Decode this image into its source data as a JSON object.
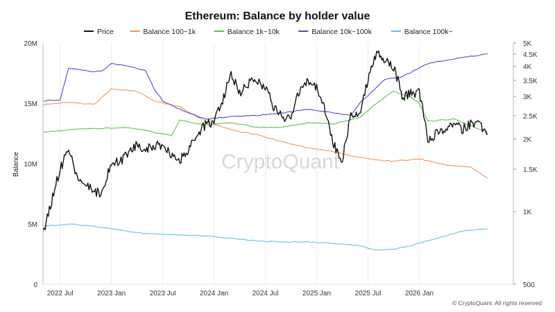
{
  "chart_data": {
    "type": "line",
    "title": "Ethereum: Balance by holder value",
    "ylabel": "Balance",
    "y_left": {
      "range": [
        0,
        20000000
      ],
      "ticks": [
        0,
        5000000,
        10000000,
        15000000,
        20000000
      ],
      "tick_labels": [
        "0",
        "5M",
        "10M",
        "15M",
        "20M"
      ]
    },
    "y_right": {
      "scale": "log",
      "range": [
        500,
        5000
      ],
      "ticks": [
        500,
        1000,
        1500,
        2000,
        2500,
        3000,
        3500,
        4000,
        4500,
        5000
      ],
      "tick_labels": [
        "500",
        "1K",
        "1.5K",
        "2K",
        "2.5K",
        "3K",
        "3.5K",
        "4K",
        "4.5K",
        "5K"
      ]
    },
    "x_axis": {
      "range": [
        "2022-05",
        "2026-12"
      ],
      "tick_labels": [
        "2022 Jul",
        "2023 Jan",
        "2023 Jul",
        "2024 Jan",
        "2024 Jul",
        "2025 Jan",
        "2025 Jul",
        "2026 Jan"
      ],
      "tick_dates": [
        "2022-07",
        "2023-01",
        "2023-07",
        "2024-01",
        "2024-07",
        "2025-01",
        "2025-07",
        "2026-01"
      ]
    },
    "legend_position": "top",
    "grid": "vertical",
    "watermark": "CryptoQuant",
    "copyright": "© CryptoQuant. All rights reserved",
    "series": [
      {
        "name": "Price",
        "color": "#111111",
        "axis": "right",
        "points": [
          [
            "2022-05",
            800
          ],
          [
            "2022-06",
            1100
          ],
          [
            "2022-07",
            1500
          ],
          [
            "2022-08",
            1800
          ],
          [
            "2022-09",
            1350
          ],
          [
            "2022-10",
            1300
          ],
          [
            "2022-11",
            1200
          ],
          [
            "2022-12",
            1200
          ],
          [
            "2023-01",
            1600
          ],
          [
            "2023-02",
            1600
          ],
          [
            "2023-03",
            1750
          ],
          [
            "2023-04",
            1900
          ],
          [
            "2023-05",
            1820
          ],
          [
            "2023-06",
            1870
          ],
          [
            "2023-07",
            1900
          ],
          [
            "2023-08",
            1700
          ],
          [
            "2023-09",
            1630
          ],
          [
            "2023-10",
            1800
          ],
          [
            "2023-11",
            2050
          ],
          [
            "2023-12",
            2300
          ],
          [
            "2024-01",
            2350
          ],
          [
            "2024-02",
            2900
          ],
          [
            "2024-03",
            3700
          ],
          [
            "2024-04",
            3100
          ],
          [
            "2024-05",
            3400
          ],
          [
            "2024-06",
            3500
          ],
          [
            "2024-07",
            3300
          ],
          [
            "2024-08",
            2700
          ],
          [
            "2024-09",
            2450
          ],
          [
            "2024-10",
            2500
          ],
          [
            "2024-11",
            3200
          ],
          [
            "2024-12",
            3500
          ],
          [
            "2025-01",
            3300
          ],
          [
            "2025-02",
            2600
          ],
          [
            "2025-03",
            1900
          ],
          [
            "2025-04",
            1600
          ],
          [
            "2025-05",
            2500
          ],
          [
            "2025-06",
            2500
          ],
          [
            "2025-07",
            3500
          ],
          [
            "2025-08",
            4500
          ],
          [
            "2025-09",
            4300
          ],
          [
            "2025-10",
            4000
          ],
          [
            "2025-11",
            3000
          ],
          [
            "2025-12",
            3100
          ],
          [
            "2026-01",
            3100
          ],
          [
            "2026-02",
            2000
          ],
          [
            "2026-03",
            2100
          ],
          [
            "2026-04",
            2200
          ],
          [
            "2026-05",
            2300
          ],
          [
            "2026-06",
            2200
          ],
          [
            "2026-07",
            2300
          ],
          [
            "2026-08",
            2300
          ],
          [
            "2026-09",
            2100
          ]
        ]
      },
      {
        "name": "Balance 100~1k",
        "color": "#f0955a",
        "axis": "left",
        "points": [
          [
            "2022-05",
            14900000
          ],
          [
            "2022-08",
            15100000
          ],
          [
            "2022-11",
            14900000
          ],
          [
            "2023-01",
            16200000
          ],
          [
            "2023-04",
            16000000
          ],
          [
            "2023-06",
            15200000
          ],
          [
            "2023-09",
            14700000
          ],
          [
            "2023-12",
            13500000
          ],
          [
            "2024-03",
            12800000
          ],
          [
            "2024-06",
            12400000
          ],
          [
            "2024-09",
            11800000
          ],
          [
            "2024-12",
            11300000
          ],
          [
            "2025-03",
            11000000
          ],
          [
            "2025-06",
            10500000
          ],
          [
            "2025-08",
            10300000
          ],
          [
            "2025-10",
            10200000
          ],
          [
            "2026-01",
            10400000
          ],
          [
            "2026-04",
            9900000
          ],
          [
            "2026-07",
            9700000
          ],
          [
            "2026-09",
            8800000
          ]
        ]
      },
      {
        "name": "Balance 1k~10k",
        "color": "#5cbf4e",
        "axis": "left",
        "points": [
          [
            "2022-05",
            12600000
          ],
          [
            "2022-08",
            12800000
          ],
          [
            "2022-11",
            12900000
          ],
          [
            "2023-03",
            13000000
          ],
          [
            "2023-06",
            12600000
          ],
          [
            "2023-08",
            12300000
          ],
          [
            "2023-09",
            13600000
          ],
          [
            "2023-12",
            13200000
          ],
          [
            "2024-03",
            13400000
          ],
          [
            "2024-06",
            13000000
          ],
          [
            "2024-09",
            13000000
          ],
          [
            "2024-12",
            13400000
          ],
          [
            "2025-03",
            13300000
          ],
          [
            "2025-06",
            13800000
          ],
          [
            "2025-08",
            15000000
          ],
          [
            "2025-10",
            16000000
          ],
          [
            "2025-12",
            15500000
          ],
          [
            "2026-01",
            15000000
          ],
          [
            "2026-02",
            13500000
          ],
          [
            "2026-05",
            13700000
          ],
          [
            "2026-09",
            12600000
          ]
        ]
      },
      {
        "name": "Balance 10k~100k",
        "color": "#5247d1",
        "axis": "left",
        "points": [
          [
            "2022-05",
            15200000
          ],
          [
            "2022-07",
            15300000
          ],
          [
            "2022-08",
            17900000
          ],
          [
            "2022-11",
            17600000
          ],
          [
            "2022-12",
            17700000
          ],
          [
            "2023-01",
            18300000
          ],
          [
            "2023-03",
            18100000
          ],
          [
            "2023-05",
            17700000
          ],
          [
            "2023-06",
            16200000
          ],
          [
            "2023-07",
            15200000
          ],
          [
            "2023-09",
            14500000
          ],
          [
            "2023-12",
            13700000
          ],
          [
            "2024-03",
            13900000
          ],
          [
            "2024-06",
            14000000
          ],
          [
            "2024-09",
            14200000
          ],
          [
            "2024-12",
            14500000
          ],
          [
            "2025-03",
            14200000
          ],
          [
            "2025-05",
            14000000
          ],
          [
            "2025-06",
            15000000
          ],
          [
            "2025-09",
            17000000
          ],
          [
            "2025-11",
            17200000
          ],
          [
            "2026-02",
            18300000
          ],
          [
            "2026-06",
            18800000
          ],
          [
            "2026-09",
            19100000
          ]
        ]
      },
      {
        "name": "Balance 100k~",
        "color": "#62c0e1",
        "axis": "left",
        "points": [
          [
            "2022-05",
            4800000
          ],
          [
            "2022-08",
            5000000
          ],
          [
            "2022-11",
            4800000
          ],
          [
            "2023-02",
            4500000
          ],
          [
            "2023-05",
            4200000
          ],
          [
            "2023-08",
            4100000
          ],
          [
            "2023-12",
            4000000
          ],
          [
            "2024-03",
            3800000
          ],
          [
            "2024-06",
            3600000
          ],
          [
            "2024-09",
            3500000
          ],
          [
            "2024-12",
            3500000
          ],
          [
            "2025-03",
            3400000
          ],
          [
            "2025-06",
            3200000
          ],
          [
            "2025-08",
            2800000
          ],
          [
            "2025-10",
            2900000
          ],
          [
            "2025-12",
            3200000
          ],
          [
            "2026-03",
            3800000
          ],
          [
            "2026-06",
            4400000
          ],
          [
            "2026-09",
            4600000
          ]
        ]
      }
    ]
  }
}
